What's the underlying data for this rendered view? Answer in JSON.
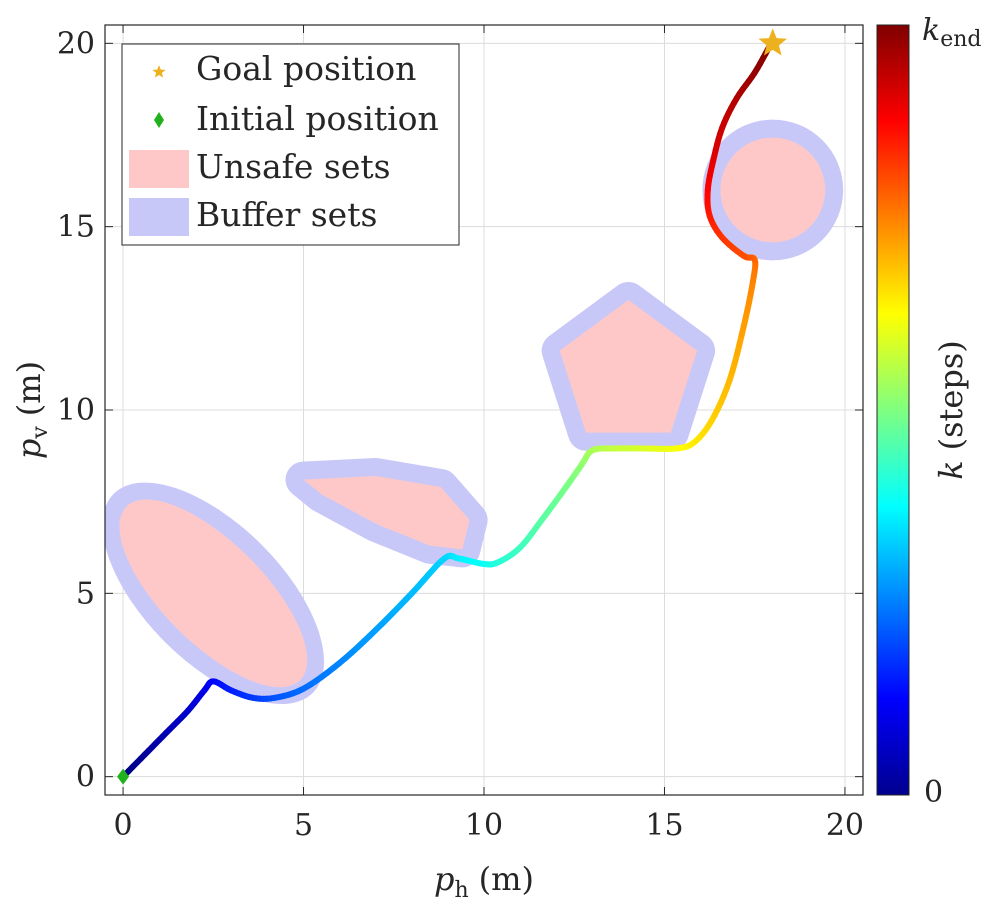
{
  "chart_data": {
    "type": "line",
    "title": "",
    "xlabel": {
      "symbol": "p",
      "subscript": "h",
      "unit": "(m)"
    },
    "ylabel": {
      "symbol": "p",
      "subscript": "v",
      "unit": "(m)"
    },
    "xlim": [
      -0.5,
      20.5
    ],
    "ylim": [
      -0.5,
      20.5
    ],
    "xticks": [
      0,
      5,
      10,
      15,
      20
    ],
    "yticks": [
      0,
      5,
      10,
      15,
      20
    ],
    "xtick_labels": [
      "0",
      "5",
      "10",
      "15",
      "20"
    ],
    "ytick_labels": [
      "0",
      "5",
      "10",
      "15",
      "20"
    ],
    "grid": true,
    "legend": {
      "placement": "top-left",
      "entries": [
        {
          "key": "goal",
          "label": "Goal position",
          "color": "#EDB120",
          "marker": "star"
        },
        {
          "key": "init",
          "label": "Initial position",
          "color": "#22B11E",
          "marker": "diamond"
        },
        {
          "key": "unsafe",
          "label": "Unsafe sets",
          "color": "#FFC8C8",
          "marker": "patch"
        },
        {
          "key": "buffer",
          "label": "Buffer sets",
          "color": "#C8C8F8",
          "marker": "patch"
        }
      ]
    },
    "colorbar": {
      "colormap": "jet",
      "label": {
        "symbol": "k",
        "unit": "(steps)"
      },
      "min_label": "0",
      "max_label": {
        "symbol": "k",
        "subscript": "end"
      }
    },
    "goal": {
      "x": 18,
      "y": 20
    },
    "initial": {
      "x": 0,
      "y": 0
    },
    "buffer_color": "#C8C8F8",
    "unsafe_color": "#FFC8C8",
    "obstacles": [
      {
        "type": "ellipse",
        "center": [
          2.5,
          5.0
        ],
        "semi_axes": [
          3.4,
          1.4
        ],
        "angle_deg": -45,
        "buffer": 0.5
      },
      {
        "type": "polygon",
        "vertices": [
          [
            5.0,
            8.1
          ],
          [
            7.0,
            8.2
          ],
          [
            8.8,
            7.9
          ],
          [
            9.6,
            7.0
          ],
          [
            9.4,
            6.2
          ],
          [
            8.5,
            6.3
          ],
          [
            7.0,
            6.9
          ],
          [
            5.5,
            7.7
          ]
        ],
        "buffer": 0.5
      },
      {
        "type": "pentagon",
        "center": [
          14.0,
          11.0
        ],
        "radius": 2.0,
        "buffer": 0.5
      },
      {
        "type": "circle",
        "center": [
          18.0,
          16.0
        ],
        "radius": 1.45,
        "buffer": 0.5
      }
    ],
    "trajectory": {
      "x": [
        0.0,
        0.6,
        1.2,
        1.8,
        2.25,
        2.5,
        3.0,
        3.6,
        4.2,
        5.0,
        6.0,
        7.0,
        8.0,
        8.9,
        9.3,
        10.0,
        10.4,
        11.0,
        11.6,
        12.2,
        12.7,
        13.0,
        13.6,
        14.5,
        15.3,
        15.8,
        16.3,
        16.8,
        17.2,
        17.45,
        17.5,
        17.2,
        16.6,
        16.25,
        16.2,
        16.35,
        16.6,
        17.0,
        17.5,
        17.9
      ],
      "y": [
        0.0,
        0.6,
        1.2,
        1.8,
        2.35,
        2.6,
        2.35,
        2.15,
        2.15,
        2.4,
        3.1,
        4.0,
        5.0,
        5.95,
        5.95,
        5.8,
        5.85,
        6.25,
        7.0,
        7.8,
        8.5,
        8.9,
        8.95,
        8.95,
        8.95,
        9.1,
        9.7,
        10.8,
        12.3,
        13.5,
        14.1,
        14.2,
        14.7,
        15.3,
        16.0,
        16.8,
        17.7,
        18.5,
        19.2,
        19.9
      ]
    }
  }
}
